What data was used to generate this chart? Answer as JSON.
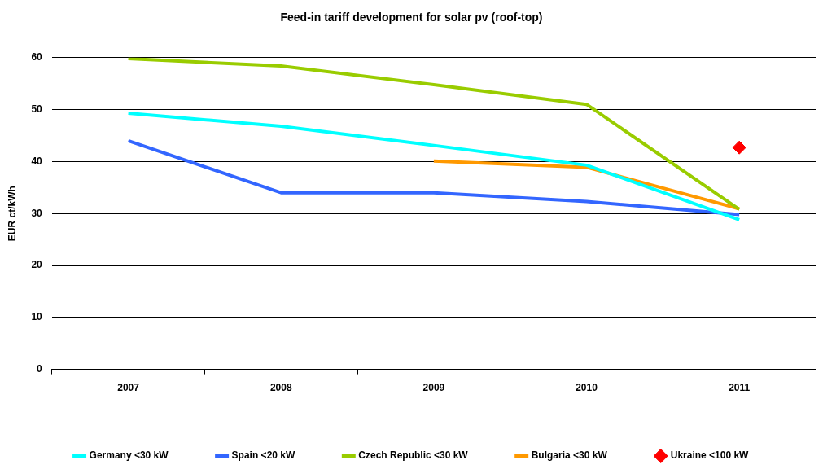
{
  "chart_data": {
    "type": "line",
    "title": "Feed-in tariff development for solar pv (roof-top)",
    "ylabel": "EUR ct/kWh",
    "categories": [
      "2007",
      "2008",
      "2009",
      "2010",
      "2011"
    ],
    "series": [
      {
        "name": "Germany <30 kW",
        "color": "#00ffff",
        "values": [
          49.3,
          46.8,
          43.1,
          39.3,
          28.8
        ],
        "marker": "none"
      },
      {
        "name": "Spain <20 kW",
        "color": "#3366ff",
        "values": [
          44.0,
          34.0,
          34.0,
          32.3,
          29.8
        ],
        "marker": "none"
      },
      {
        "name": "Czech Republic <30 kW",
        "color": "#99cc00",
        "values": [
          59.8,
          58.4,
          54.8,
          51.0,
          30.8
        ],
        "marker": "none"
      },
      {
        "name": "Bulgaria <30 kW",
        "color": "#ff9900",
        "values": [
          null,
          null,
          40.1,
          38.9,
          30.9
        ],
        "marker": "none"
      },
      {
        "name": "Ukraine <100 kW",
        "type": "scatter",
        "color": "#ff0000",
        "values": [
          null,
          null,
          null,
          null,
          42.7
        ],
        "marker": "diamond"
      }
    ],
    "ylim": [
      0,
      60
    ],
    "yticks": [
      0,
      10,
      20,
      30,
      40,
      50,
      60
    ],
    "grid": "y",
    "legend": "bottom"
  }
}
